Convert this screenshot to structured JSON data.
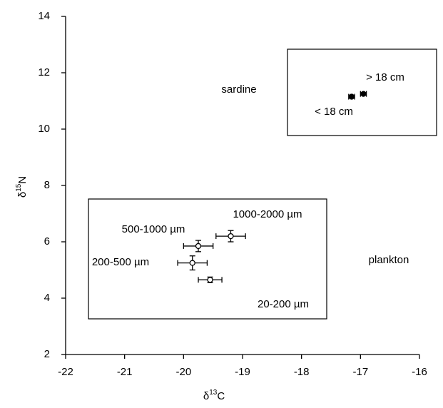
{
  "chart_data": {
    "type": "scatter",
    "x_label": {
      "symbol": "δ",
      "sup": "13",
      "element": "C"
    },
    "y_label": {
      "symbol": "δ",
      "sup": "15",
      "element": "N"
    },
    "xlim": [
      -22,
      -16
    ],
    "xticks": [
      -22,
      -21,
      -20,
      -19,
      -18,
      -17,
      -16
    ],
    "ylim": [
      2,
      14
    ],
    "yticks": [
      2,
      4,
      6,
      8,
      10,
      12,
      14
    ],
    "color": "#000000",
    "series": [
      {
        "name": "plankton",
        "marker": "open",
        "labels": [
          "1000-2000 µm",
          "500-1000 µm",
          "200-500 µm",
          "20-200 µm"
        ],
        "x": [
          -19.2,
          -19.75,
          -19.85,
          -19.55
        ],
        "y": [
          6.2,
          5.85,
          5.25,
          4.65
        ],
        "xerr": [
          0.25,
          0.25,
          0.25,
          0.2
        ],
        "yerr": [
          0.2,
          0.2,
          0.25,
          0.1
        ]
      },
      {
        "name": "sardine",
        "marker": "filled",
        "labels": [
          "> 18 cm",
          "< 18 cm"
        ],
        "x": [
          -16.95,
          -17.15
        ],
        "y": [
          11.25,
          11.15
        ],
        "xerr": [
          0.05,
          0.05
        ],
        "yerr": [
          0.05,
          0.05
        ]
      }
    ]
  }
}
